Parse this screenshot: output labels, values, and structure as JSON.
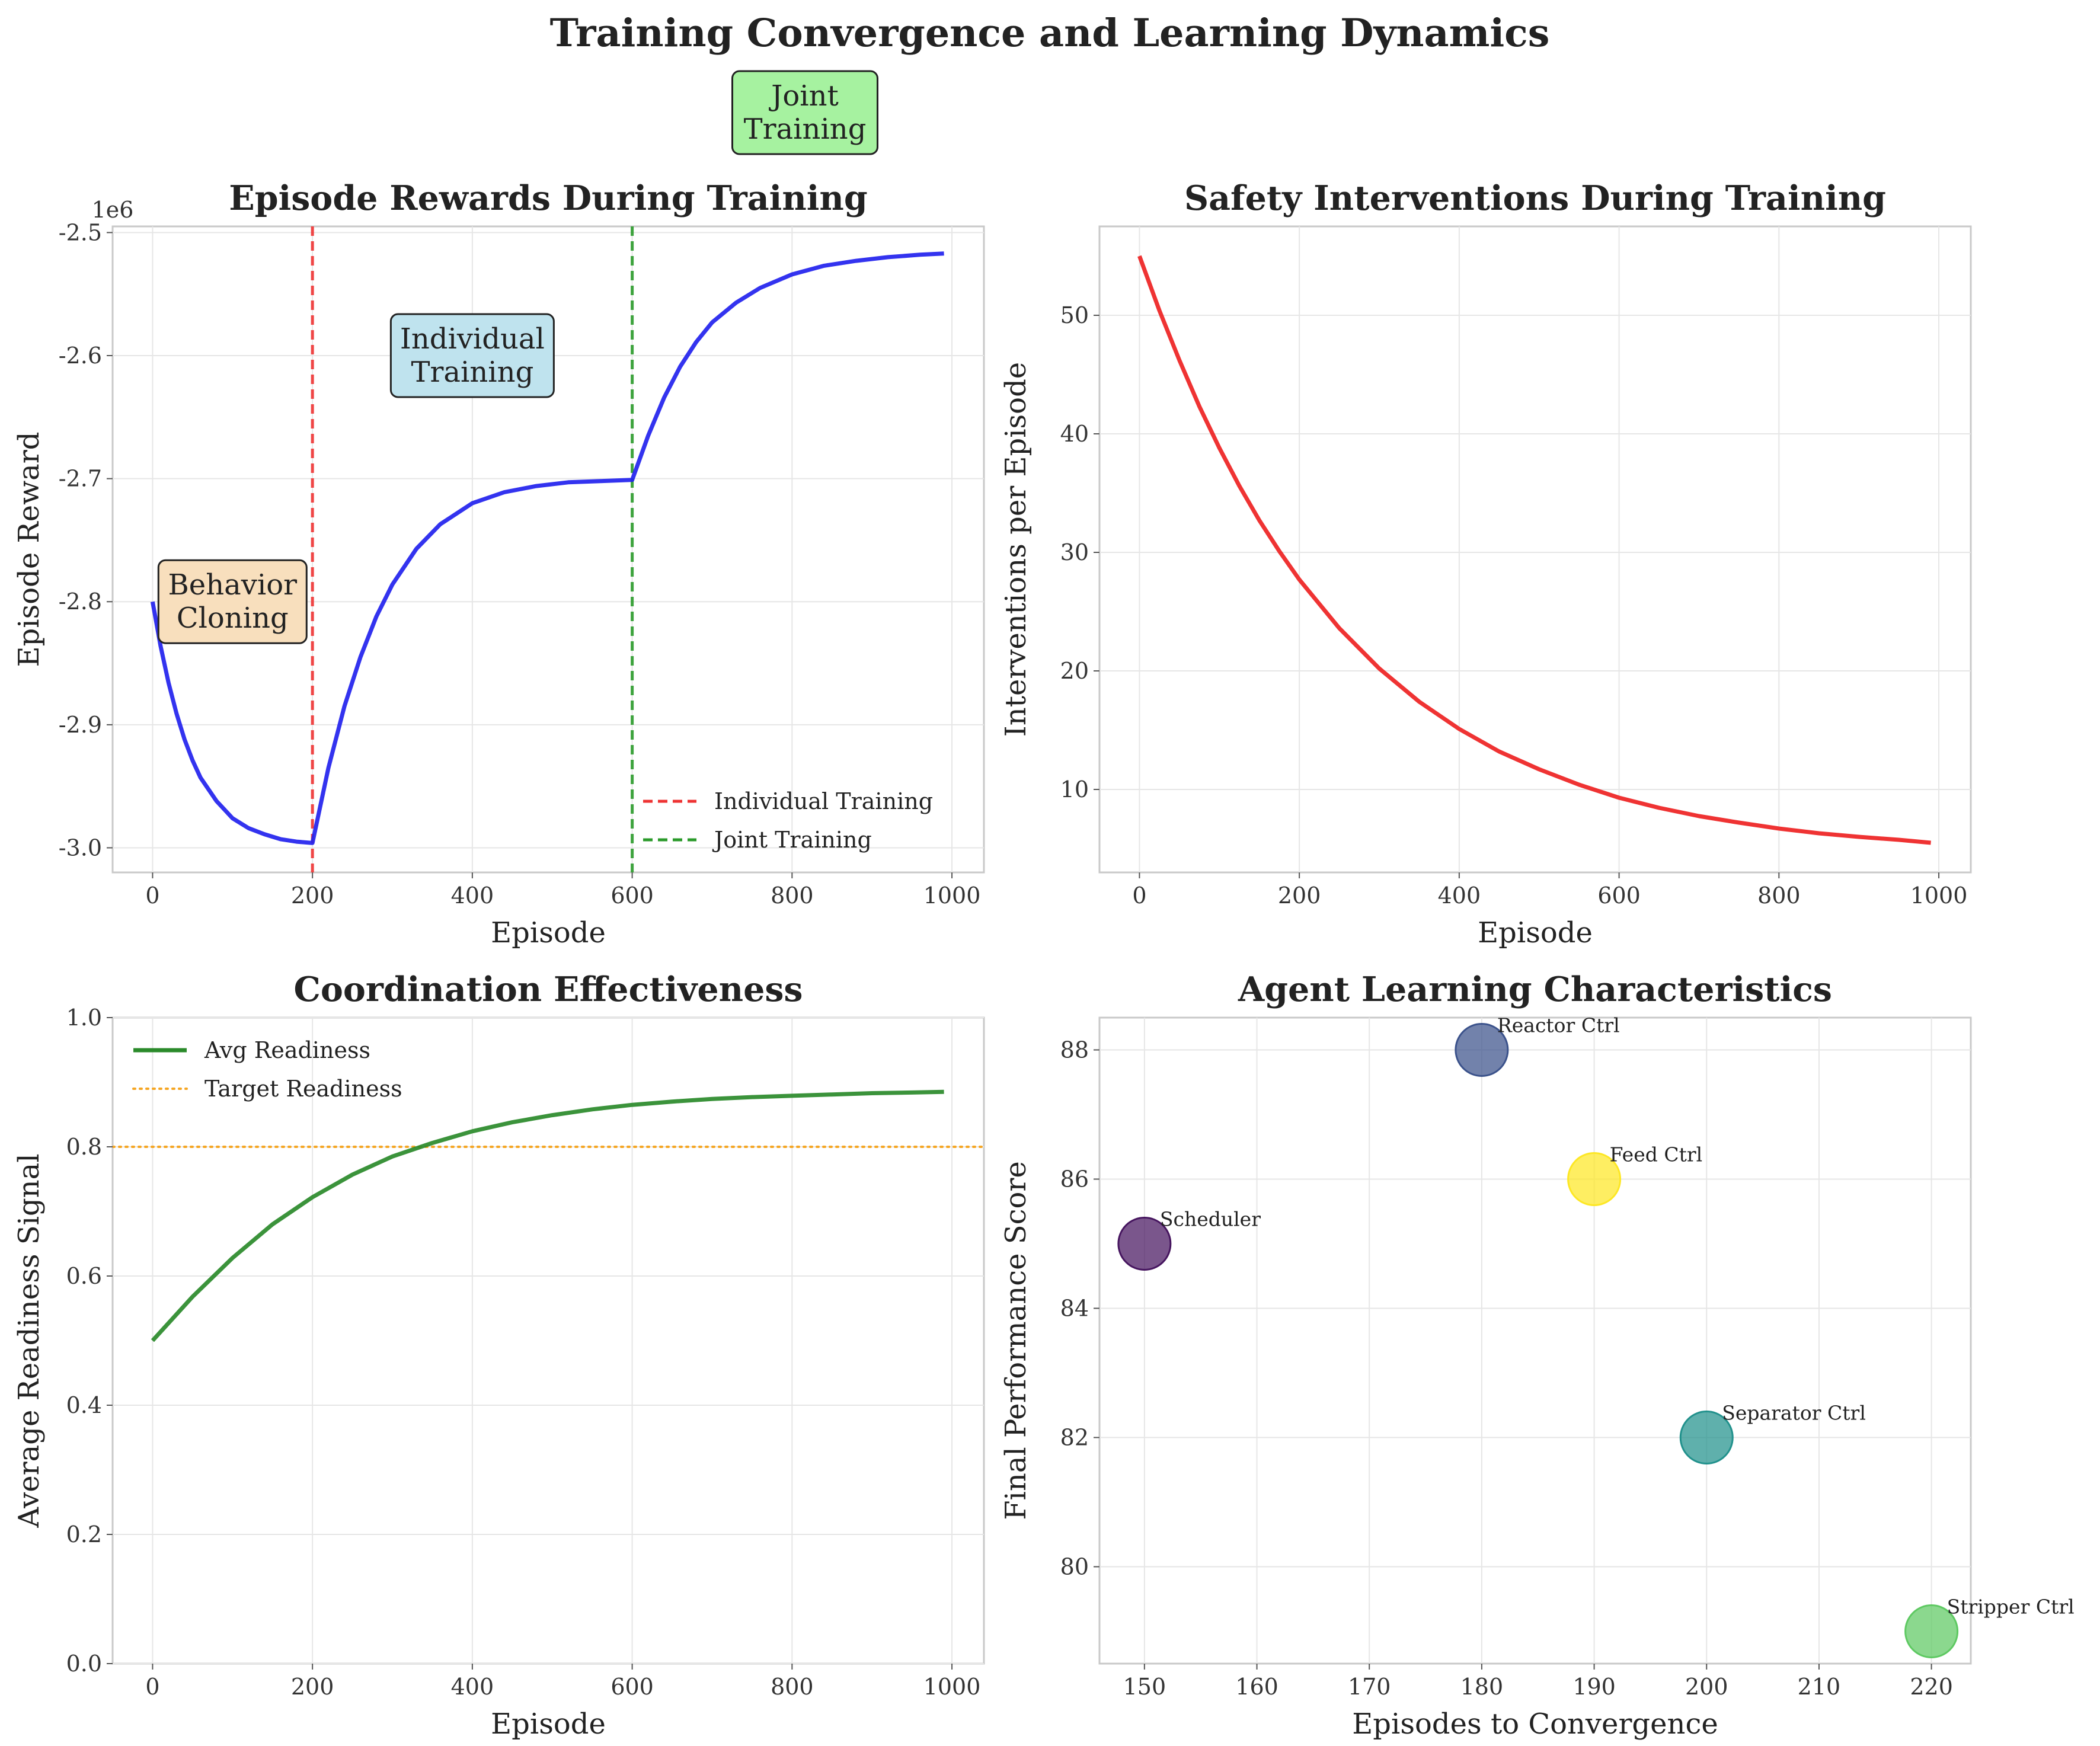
{
  "figure": {
    "title": "Training Convergence and Learning Dynamics",
    "banner_annotation": {
      "text": [
        "Joint",
        "Training"
      ],
      "color": "#a6f2a0"
    }
  },
  "chart_data": [
    {
      "id": "rewards",
      "type": "line",
      "title": "Episode Rewards During Training",
      "xlabel": "Episode",
      "ylabel": "Episode Reward",
      "offset_text": "1e6",
      "xlim": [
        -50,
        1040
      ],
      "ylim": [
        -3.02,
        -2.495
      ],
      "xticks": [
        0,
        200,
        400,
        600,
        800,
        1000
      ],
      "yticks": [
        -3.0,
        -2.9,
        -2.8,
        -2.7,
        -2.6,
        -2.5
      ],
      "ytick_labels": [
        "-3.0",
        "-2.9",
        "-2.8",
        "-2.7",
        "-2.6",
        "-2.5"
      ],
      "grid": true,
      "series": [
        {
          "color": "#2222ee",
          "x": [
            0,
            10,
            20,
            30,
            40,
            50,
            60,
            80,
            100,
            120,
            140,
            160,
            180,
            199,
            200,
            220,
            240,
            260,
            280,
            300,
            330,
            360,
            400,
            440,
            480,
            520,
            560,
            599,
            600,
            620,
            640,
            660,
            680,
            700,
            730,
            760,
            800,
            840,
            880,
            920,
            960,
            990
          ],
          "y": [
            -2.8,
            -2.836,
            -2.866,
            -2.891,
            -2.912,
            -2.929,
            -2.943,
            -2.962,
            -2.976,
            -2.984,
            -2.989,
            -2.993,
            -2.995,
            -2.996,
            -2.996,
            -2.935,
            -2.885,
            -2.845,
            -2.812,
            -2.786,
            -2.757,
            -2.737,
            -2.72,
            -2.711,
            -2.706,
            -2.703,
            -2.702,
            -2.701,
            -2.701,
            -2.665,
            -2.634,
            -2.609,
            -2.589,
            -2.573,
            -2.557,
            -2.545,
            -2.534,
            -2.527,
            -2.523,
            -2.52,
            -2.518,
            -2.517
          ]
        }
      ],
      "vlines": [
        {
          "x": 200,
          "color": "#ee3333",
          "label": "Individual Training"
        },
        {
          "x": 600,
          "color": "#2a9a2a",
          "label": "Joint Training"
        }
      ],
      "annotations": [
        {
          "lines": [
            "Behavior",
            "Cloning"
          ],
          "x": 100,
          "y": -2.8,
          "color": "#f8dfbd"
        },
        {
          "lines": [
            "Individual",
            "Training"
          ],
          "x": 400,
          "y": -2.6,
          "color": "#bfe3ee"
        }
      ],
      "legend": "lower-right"
    },
    {
      "id": "safety",
      "type": "line",
      "title": "Safety Interventions During Training",
      "xlabel": "Episode",
      "ylabel": "Interventions per Episode",
      "xlim": [
        -50,
        1040
      ],
      "ylim": [
        3.0,
        57.5
      ],
      "xticks": [
        0,
        200,
        400,
        600,
        800,
        1000
      ],
      "yticks": [
        10,
        20,
        30,
        40,
        50
      ],
      "grid": true,
      "series": [
        {
          "color": "#ee2222",
          "x": [
            0,
            25,
            50,
            75,
            100,
            125,
            150,
            175,
            200,
            250,
            300,
            350,
            400,
            450,
            500,
            550,
            600,
            650,
            700,
            750,
            800,
            850,
            900,
            950,
            990
          ],
          "y": [
            55.0,
            50.4,
            46.2,
            42.3,
            38.8,
            35.6,
            32.7,
            30.1,
            27.7,
            23.6,
            20.2,
            17.4,
            15.1,
            13.2,
            11.7,
            10.4,
            9.3,
            8.45,
            7.75,
            7.2,
            6.7,
            6.3,
            6.0,
            5.75,
            5.5
          ]
        }
      ]
    },
    {
      "id": "coordination",
      "type": "line",
      "title": "Coordination Effectiveness",
      "xlabel": "Episode",
      "ylabel": "Average Readiness Signal",
      "xlim": [
        -50,
        1040
      ],
      "ylim": [
        0,
        1.0
      ],
      "xticks": [
        0,
        200,
        400,
        600,
        800,
        1000
      ],
      "yticks": [
        0.0,
        0.2,
        0.4,
        0.6,
        0.8,
        1.0
      ],
      "ytick_labels": [
        "0.0",
        "0.2",
        "0.4",
        "0.6",
        "0.8",
        "1.0"
      ],
      "grid": true,
      "series": [
        {
          "name": "Avg Readiness",
          "color": "#2a8a2a",
          "x": [
            0,
            50,
            100,
            150,
            200,
            250,
            300,
            350,
            400,
            450,
            500,
            550,
            600,
            650,
            700,
            750,
            800,
            850,
            900,
            950,
            990
          ],
          "y": [
            0.5,
            0.568,
            0.628,
            0.68,
            0.722,
            0.757,
            0.785,
            0.806,
            0.824,
            0.838,
            0.849,
            0.858,
            0.865,
            0.87,
            0.874,
            0.877,
            0.879,
            0.881,
            0.883,
            0.884,
            0.885
          ]
        }
      ],
      "hlines": [
        {
          "y": 0.8,
          "color": "#f5a623",
          "label": "Target Readiness"
        }
      ],
      "legend": "upper-left"
    },
    {
      "id": "agents",
      "type": "scatter",
      "title": "Agent Learning Characteristics",
      "xlabel": "Episodes to Convergence",
      "ylabel": "Final Performance Score",
      "xlim": [
        146,
        223.5
      ],
      "ylim": [
        78.5,
        88.5
      ],
      "xticks": [
        150,
        160,
        170,
        180,
        190,
        200,
        210,
        220
      ],
      "yticks": [
        80,
        82,
        84,
        86,
        88
      ],
      "grid": true,
      "points": [
        {
          "label": "Scheduler",
          "x": 150,
          "y": 85,
          "color": "#46155f"
        },
        {
          "label": "Reactor Ctrl",
          "x": 180,
          "y": 88,
          "color": "#3b528b"
        },
        {
          "label": "Feed Ctrl",
          "x": 190,
          "y": 86,
          "color": "#fde725"
        },
        {
          "label": "Separator Ctrl",
          "x": 200,
          "y": 82,
          "color": "#21918c"
        },
        {
          "label": "Stripper Ctrl",
          "x": 220,
          "y": 79,
          "color": "#5ec962"
        }
      ]
    }
  ]
}
